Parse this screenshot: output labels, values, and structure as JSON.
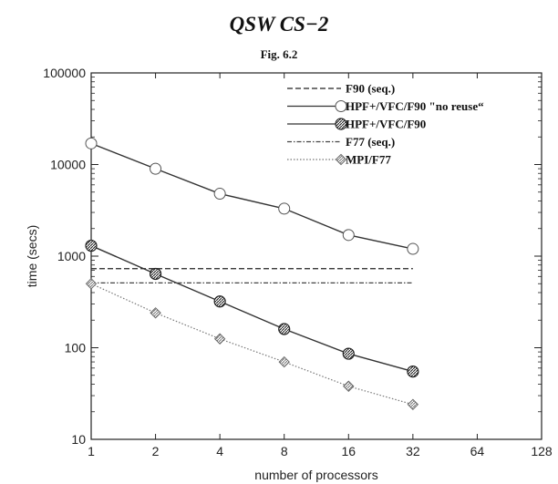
{
  "chart_data": {
    "type": "line",
    "title": "QSW CS−2",
    "subtitle": "Fig. 6.2",
    "xlabel": "number of processors",
    "ylabel": "time (secs)",
    "xscale": "log2",
    "yscale": "log10",
    "xlim": [
      1,
      128
    ],
    "ylim": [
      10,
      100000
    ],
    "xticks": [
      1,
      2,
      4,
      8,
      16,
      32,
      64,
      128
    ],
    "xtick_labels": [
      "1",
      "2",
      "4",
      "8",
      "16",
      "32",
      "64",
      "128"
    ],
    "yticks": [
      10,
      100,
      1000,
      10000,
      100000
    ],
    "ytick_labels": [
      "10",
      "100",
      "1000",
      "10000",
      "100000"
    ],
    "legend_position": "top-right",
    "series": [
      {
        "name": "F90 (seq.)",
        "style": "dashed",
        "marker": "none",
        "color": "#222222",
        "x": [
          1,
          32
        ],
        "y": [
          730,
          730
        ]
      },
      {
        "name": "HPF+/VFC/F90 \"no reuse“",
        "style": "solid",
        "marker": "open-circle",
        "color": "#333333",
        "x": [
          1,
          2,
          4,
          8,
          16,
          32
        ],
        "y": [
          17000,
          9000,
          4800,
          3300,
          1700,
          1200
        ]
      },
      {
        "name": "HPF+/VFC/F90",
        "style": "solid",
        "marker": "hatched-circle",
        "color": "#333333",
        "x": [
          1,
          2,
          4,
          8,
          16,
          32
        ],
        "y": [
          1300,
          640,
          320,
          160,
          86,
          55
        ]
      },
      {
        "name": "F77 (seq.)",
        "style": "dashdot",
        "marker": "none",
        "color": "#444444",
        "x": [
          1,
          32
        ],
        "y": [
          510,
          510
        ]
      },
      {
        "name": "MPI/F77",
        "style": "dotted",
        "marker": "hatched-diamond",
        "color": "#777777",
        "x": [
          1,
          2,
          4,
          8,
          16,
          32
        ],
        "y": [
          500,
          240,
          125,
          70,
          38,
          24
        ]
      }
    ]
  }
}
